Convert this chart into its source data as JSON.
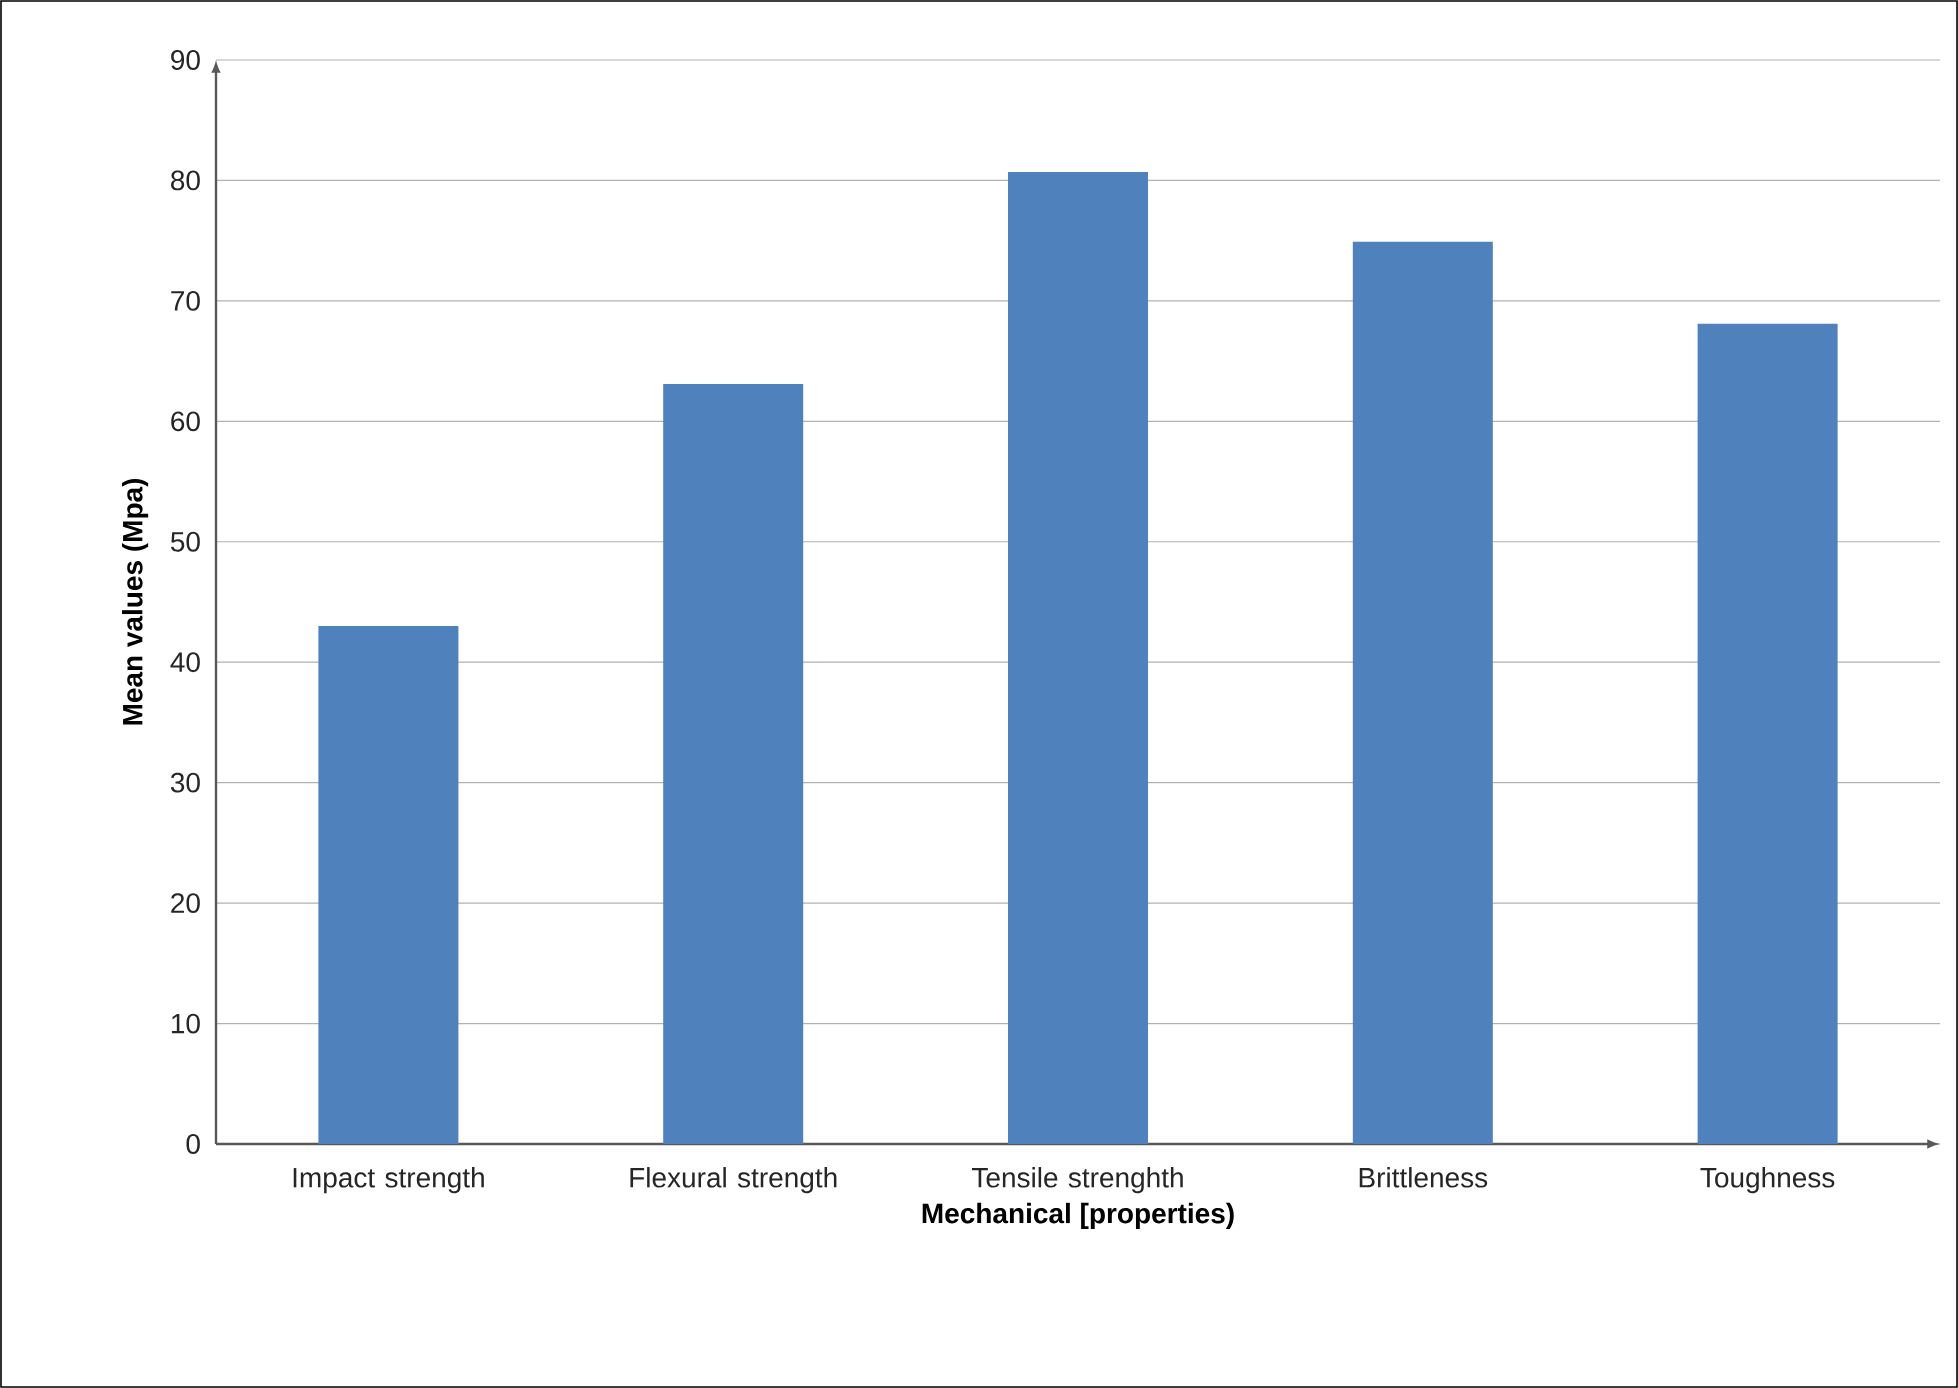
{
  "chart_data": {
    "type": "bar",
    "xlabel": "Mechanical [properties)",
    "ylabel": "Mean values (Mpa)",
    "categories": [
      "Impact strength",
      "Flexural strength",
      "Tensile strenghth",
      "Brittleness",
      "Toughness"
    ],
    "values": [
      43.0,
      63.1,
      80.7,
      74.9,
      68.1
    ],
    "color": "#4f81bd",
    "ylim": [
      0,
      90
    ],
    "yticks": [
      0,
      10,
      20,
      30,
      40,
      50,
      60,
      70,
      80,
      90
    ],
    "grid": "y"
  }
}
